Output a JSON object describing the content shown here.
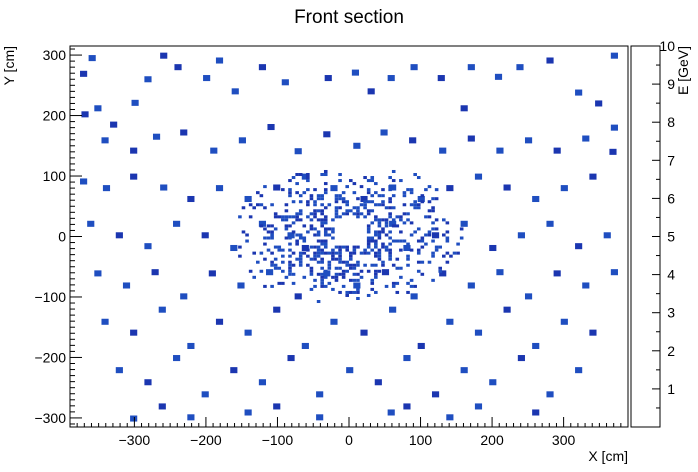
{
  "chart_data": {
    "type": "heatmap",
    "title": "Front section",
    "xlabel": "X [cm]",
    "ylabel": "Y [cm]",
    "zlabel": "E [GeV]",
    "xlim": [
      -390,
      390
    ],
    "ylim": [
      -315,
      315
    ],
    "zlim": [
      0,
      10
    ],
    "x_ticks": [
      -300,
      -200,
      -100,
      0,
      100,
      200,
      300
    ],
    "x_tick_labels": [
      "−300",
      "−200",
      "−100",
      "0",
      "100",
      "200",
      "300"
    ],
    "y_ticks": [
      -300,
      -200,
      -100,
      0,
      100,
      200,
      300
    ],
    "y_tick_labels": [
      "−300",
      "−200",
      "−100",
      "0",
      "100",
      "200",
      "300"
    ],
    "z_ticks": [
      1,
      2,
      3,
      4,
      5,
      6,
      7,
      8,
      9,
      10
    ],
    "z_tick_labels": [
      "1",
      "2",
      "3",
      "4",
      "5",
      "6",
      "7",
      "8",
      "9",
      "10"
    ],
    "bin_size_cm": 10,
    "inner_bin_size_cm": 5,
    "central_hole": {
      "x": [
        -20,
        25
      ],
      "y": [
        -15,
        30
      ]
    },
    "grid": false,
    "legend": "colorbar-right",
    "colormap": [
      "#1b36b0",
      "#1f4ec0",
      "#2a6bc8",
      "#3a89c8",
      "#4aa3c0",
      "#5ab8ae",
      "#7bc294",
      "#a7c57b",
      "#d2c45a",
      "#f0cb3a",
      "#fbe33a",
      "#fefb45"
    ],
    "cells_visible_max_energy_gev": 1.5,
    "cells": [
      [
        -359,
        295,
        0.9
      ],
      [
        -369,
        202,
        0.7
      ],
      [
        -351,
        212,
        1.1
      ],
      [
        -329,
        185,
        0.6
      ],
      [
        -299,
        221,
        1.3
      ],
      [
        -281,
        260,
        0.9
      ],
      [
        -259,
        299,
        0.8
      ],
      [
        -239,
        280,
        0.6
      ],
      [
        -199,
        262,
        1.0
      ],
      [
        -159,
        240,
        1.2
      ],
      [
        -121,
        280,
        0.7
      ],
      [
        -89,
        255,
        0.9
      ],
      [
        -29,
        262,
        0.8
      ],
      [
        9,
        271,
        1.0
      ],
      [
        31,
        240,
        0.7
      ],
      [
        59,
        262,
        0.9
      ],
      [
        91,
        280,
        1.2
      ],
      [
        129,
        262,
        0.8
      ],
      [
        171,
        280,
        1.1
      ],
      [
        209,
        264,
        1.4
      ],
      [
        239,
        280,
        0.9
      ],
      [
        281,
        291,
        0.8
      ],
      [
        321,
        238,
        1.3
      ],
      [
        349,
        220,
        0.7
      ],
      [
        371,
        180,
        1.0
      ],
      [
        -341,
        159,
        0.9
      ],
      [
        -301,
        142,
        0.8
      ],
      [
        -269,
        165,
        1.1
      ],
      [
        -231,
        172,
        0.7
      ],
      [
        -189,
        142,
        0.9
      ],
      [
        -149,
        159,
        1.2
      ],
      [
        -109,
        181,
        0.8
      ],
      [
        -71,
        141,
        1.0
      ],
      [
        -31,
        169,
        0.8
      ],
      [
        11,
        150,
        0.9
      ],
      [
        49,
        172,
        1.1
      ],
      [
        89,
        159,
        0.7
      ],
      [
        131,
        142,
        1.0
      ],
      [
        171,
        162,
        0.8
      ],
      [
        211,
        142,
        1.2
      ],
      [
        251,
        159,
        0.9
      ],
      [
        291,
        142,
        0.7
      ],
      [
        331,
        162,
        1.0
      ],
      [
        369,
        140,
        0.8
      ],
      [
        -371,
        91,
        0.9
      ],
      [
        -339,
        80,
        1.0
      ],
      [
        -301,
        99,
        0.7
      ],
      [
        -259,
        81,
        1.1
      ],
      [
        -221,
        62,
        0.8
      ],
      [
        -181,
        80,
        0.9
      ],
      [
        -141,
        62,
        1.0
      ],
      [
        -101,
        81,
        0.7
      ],
      [
        -61,
        99,
        1.2
      ],
      [
        -21,
        80,
        0.9
      ],
      [
        21,
        62,
        0.8
      ],
      [
        61,
        81,
        1.1
      ],
      [
        101,
        62,
        0.9
      ],
      [
        141,
        80,
        0.7
      ],
      [
        181,
        99,
        1.0
      ],
      [
        221,
        81,
        0.8
      ],
      [
        261,
        62,
        1.2
      ],
      [
        301,
        80,
        0.9
      ],
      [
        341,
        99,
        0.7
      ],
      [
        -361,
        21,
        1.0
      ],
      [
        -321,
        2,
        0.8
      ],
      [
        -281,
        -16,
        0.9
      ],
      [
        -241,
        21,
        1.1
      ],
      [
        -201,
        2,
        0.7
      ],
      [
        -161,
        -19,
        1.0
      ],
      [
        -121,
        21,
        0.9
      ],
      [
        -81,
        2,
        1.2
      ],
      [
        -61,
        -19,
        0.8
      ],
      [
        61,
        21,
        0.9
      ],
      [
        81,
        -19,
        1.1
      ],
      [
        121,
        2,
        0.8
      ],
      [
        161,
        21,
        1.0
      ],
      [
        201,
        -19,
        0.7
      ],
      [
        241,
        2,
        0.9
      ],
      [
        281,
        21,
        1.1
      ],
      [
        321,
        -16,
        0.8
      ],
      [
        361,
        2,
        1.0
      ],
      [
        -351,
        -61,
        0.9
      ],
      [
        -311,
        -81,
        1.1
      ],
      [
        -271,
        -59,
        0.8
      ],
      [
        -231,
        -99,
        1.0
      ],
      [
        -191,
        -61,
        0.7
      ],
      [
        -151,
        -81,
        0.9
      ],
      [
        -111,
        -59,
        1.2
      ],
      [
        -71,
        -99,
        0.8
      ],
      [
        -31,
        -61,
        1.0
      ],
      [
        11,
        -81,
        0.9
      ],
      [
        51,
        -59,
        0.7
      ],
      [
        91,
        -99,
        1.1
      ],
      [
        131,
        -61,
        0.8
      ],
      [
        171,
        -81,
        1.0
      ],
      [
        211,
        -59,
        0.9
      ],
      [
        251,
        -99,
        1.2
      ],
      [
        291,
        -61,
        0.8
      ],
      [
        331,
        -81,
        0.9
      ],
      [
        371,
        -59,
        1.1
      ],
      [
        -341,
        -141,
        1.0
      ],
      [
        -301,
        -159,
        0.8
      ],
      [
        -261,
        -121,
        1.1
      ],
      [
        -221,
        -181,
        0.9
      ],
      [
        -181,
        -141,
        0.7
      ],
      [
        -141,
        -159,
        1.0
      ],
      [
        -101,
        -121,
        0.8
      ],
      [
        -61,
        -181,
        1.2
      ],
      [
        -21,
        -141,
        0.9
      ],
      [
        21,
        -159,
        0.8
      ],
      [
        61,
        -121,
        1.1
      ],
      [
        101,
        -181,
        0.7
      ],
      [
        141,
        -141,
        1.0
      ],
      [
        181,
        -159,
        0.9
      ],
      [
        221,
        -121,
        0.8
      ],
      [
        261,
        -181,
        1.1
      ],
      [
        301,
        -141,
        0.9
      ],
      [
        341,
        -159,
        0.7
      ],
      [
        -321,
        -221,
        1.0
      ],
      [
        -281,
        -241,
        0.8
      ],
      [
        -241,
        -201,
        1.2
      ],
      [
        -201,
        -261,
        0.9
      ],
      [
        -161,
        -221,
        0.7
      ],
      [
        -121,
        -241,
        1.0
      ],
      [
        -81,
        -201,
        0.8
      ],
      [
        -41,
        -261,
        1.1
      ],
      [
        1,
        -221,
        0.9
      ],
      [
        41,
        -241,
        0.7
      ],
      [
        81,
        -201,
        1.0
      ],
      [
        121,
        -261,
        0.8
      ],
      [
        161,
        -221,
        1.2
      ],
      [
        201,
        -241,
        0.9
      ],
      [
        241,
        -201,
        0.8
      ],
      [
        281,
        -261,
        1.0
      ],
      [
        321,
        -221,
        0.9
      ],
      [
        -301,
        -301,
        1.1
      ],
      [
        -261,
        -281,
        0.8
      ],
      [
        -221,
        -299,
        0.9
      ],
      [
        -141,
        -291,
        1.0
      ],
      [
        -101,
        -281,
        0.7
      ],
      [
        -41,
        -299,
        0.9
      ],
      [
        59,
        -291,
        1.1
      ],
      [
        81,
        -281,
        0.8
      ],
      [
        141,
        -299,
        1.0
      ],
      [
        181,
        -281,
        0.9
      ],
      [
        261,
        -291,
        0.8
      ],
      [
        -371,
        269,
        0.6
      ],
      [
        371,
        299,
        0.9
      ],
      [
        -181,
        291,
        1.0
      ],
      [
        161,
        212,
        0.8
      ]
    ],
    "dense_region": {
      "x": [
        -160,
        160
      ],
      "y": [
        -110,
        110
      ]
    }
  }
}
